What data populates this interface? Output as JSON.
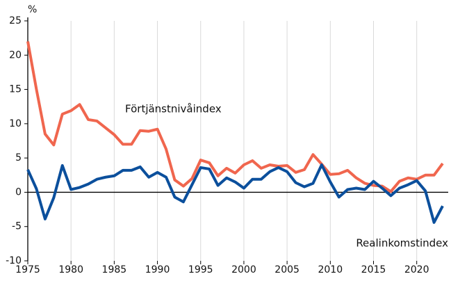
{
  "chart_data": {
    "type": "line",
    "y_unit_label": "%",
    "x": [
      1975,
      1976,
      1977,
      1978,
      1979,
      1980,
      1981,
      1982,
      1983,
      1984,
      1985,
      1986,
      1987,
      1988,
      1989,
      1990,
      1991,
      1992,
      1993,
      1994,
      1995,
      1996,
      1997,
      1998,
      1999,
      2000,
      2001,
      2002,
      2003,
      2004,
      2005,
      2006,
      2007,
      2008,
      2009,
      2010,
      2011,
      2012,
      2013,
      2014,
      2015,
      2016,
      2017,
      2018,
      2019,
      2020,
      2021,
      2022,
      2023
    ],
    "series": [
      {
        "name": "Förtjänstnivåindex",
        "color": "#f0664e",
        "values": [
          22,
          15,
          8.5,
          6.9,
          11.4,
          11.9,
          12.8,
          10.6,
          10.4,
          9.4,
          8.4,
          7.0,
          7.0,
          9.0,
          8.9,
          9.2,
          6.3,
          1.8,
          0.9,
          2.0,
          4.7,
          4.3,
          2.4,
          3.5,
          2.8,
          4.0,
          4.6,
          3.5,
          4.0,
          3.8,
          3.9,
          2.9,
          3.3,
          5.5,
          4.1,
          2.6,
          2.7,
          3.2,
          2.1,
          1.3,
          1.0,
          0.9,
          0.1,
          1.6,
          2.1,
          1.9,
          2.5,
          2.5,
          4.2
        ]
      },
      {
        "name": "Realinkomstindex",
        "color": "#0b4f9c",
        "values": [
          3.3,
          0.5,
          -3.9,
          -0.8,
          3.9,
          0.4,
          0.7,
          1.2,
          1.9,
          2.2,
          2.4,
          3.2,
          3.2,
          3.7,
          2.2,
          2.9,
          2.2,
          -0.7,
          -1.4,
          1.1,
          3.6,
          3.4,
          1.0,
          2.1,
          1.5,
          0.6,
          1.9,
          1.9,
          3.0,
          3.6,
          3.0,
          1.4,
          0.8,
          1.3,
          4.0,
          1.5,
          -0.7,
          0.4,
          0.6,
          0.4,
          1.6,
          0.6,
          -0.5,
          0.6,
          1.1,
          1.7,
          0.2,
          -4.4,
          -2.0
        ]
      }
    ],
    "xlim": [
      1975,
      2023
    ],
    "xticks": [
      1975,
      1980,
      1985,
      1990,
      1995,
      2000,
      2005,
      2010,
      2015,
      2020
    ],
    "ylim": [
      -10,
      25
    ],
    "yticks": [
      -10,
      -5,
      0,
      5,
      10,
      15,
      20,
      25
    ],
    "grid": true
  }
}
